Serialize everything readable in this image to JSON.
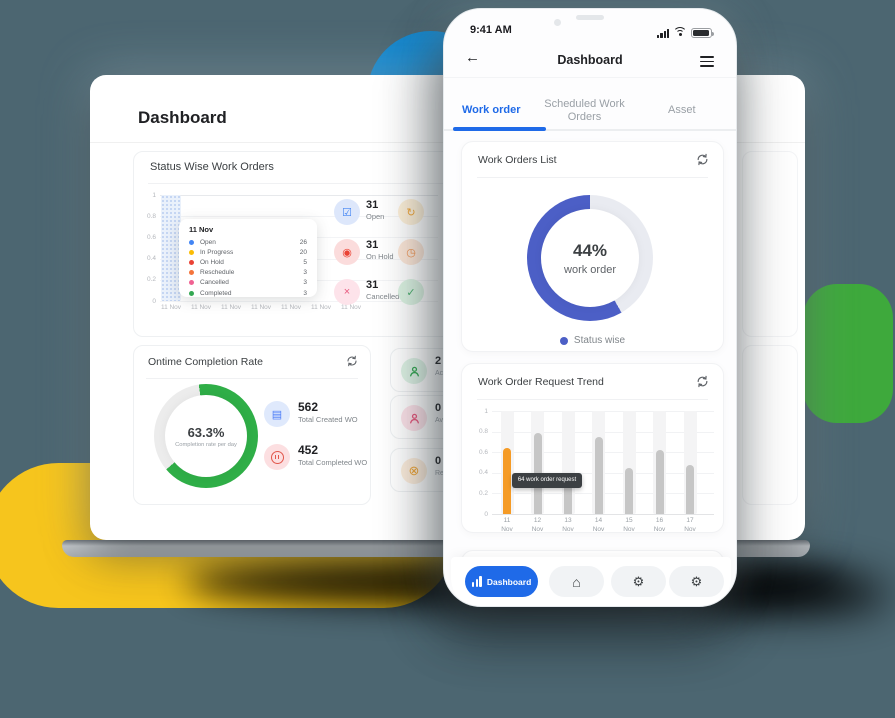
{
  "colors": {
    "accent_blue": "#1f6ae8",
    "donut_blue": "#4c5fc6",
    "donut_green": "#2fae47",
    "bar_orange": "#f59b26",
    "bar_gray": "#c6c6c6",
    "bg": "#4c6671"
  },
  "phone": {
    "status_bar": {
      "time": "9:41 AM"
    },
    "header": {
      "title": "Dashboard",
      "back_icon": "left-arrow",
      "menu_icon": "hamburger"
    },
    "tabs": [
      {
        "label": "Work order",
        "active": true
      },
      {
        "label": "Scheduled Work Orders",
        "active": false
      },
      {
        "label": "Asset",
        "active": false
      }
    ],
    "work_orders_card": {
      "title": "Work Orders List",
      "donut": {
        "value": "44%",
        "label": "work order",
        "percent": 44,
        "color": "#4c5fc6"
      },
      "legend": "Status wise"
    },
    "trend_card": {
      "title": "Work Order Request Trend",
      "tooltip": "64 work order request",
      "chart": {
        "type": "bar",
        "y_ticks": [
          "1",
          "0.8",
          "0.6",
          "0.4",
          "0.2",
          "0"
        ],
        "ylim": [
          0,
          1
        ],
        "bars": [
          {
            "day": "11",
            "month": "Nov",
            "value": 0.64,
            "color": "#f59b26"
          },
          {
            "day": "12",
            "month": "Nov",
            "value": 0.79,
            "color": "#c6c6c6"
          },
          {
            "day": "13",
            "month": "Nov",
            "value": 0.35,
            "color": "#c6c6c6"
          },
          {
            "day": "14",
            "month": "Nov",
            "value": 0.75,
            "color": "#c6c6c6"
          },
          {
            "day": "15",
            "month": "Nov",
            "value": 0.45,
            "color": "#c6c6c6"
          },
          {
            "day": "16",
            "month": "Nov",
            "value": 0.62,
            "color": "#c6c6c6"
          },
          {
            "day": "17",
            "month": "Nov",
            "value": 0.48,
            "color": "#c6c6c6"
          }
        ]
      }
    },
    "nav": {
      "dashboard_label": "Dashboard"
    }
  },
  "desktop": {
    "title": "Dashboard",
    "status_card": {
      "title": "Status Wise Work Orders",
      "y_ticks": [
        "1",
        "0.8",
        "0.6",
        "0.4",
        "0.2",
        "0"
      ],
      "x_labels": [
        "11 Nov",
        "11 Nov",
        "11 Nov",
        "11 Nov",
        "11 Nov",
        "11 Nov",
        "11 Nov"
      ],
      "tooltip": {
        "date": "11 Nov",
        "rows": [
          {
            "label": "Open",
            "value": "26",
            "color": "#4285f4"
          },
          {
            "label": "In Progress",
            "value": "20",
            "color": "#fbbc04"
          },
          {
            "label": "On Hold",
            "value": "5",
            "color": "#ea4335"
          },
          {
            "label": "Reschedule",
            "value": "3",
            "color": "#f4743b"
          },
          {
            "label": "Cancelled",
            "value": "3",
            "color": "#f06292"
          },
          {
            "label": "Completed",
            "value": "3",
            "color": "#34a853"
          }
        ]
      },
      "stats": [
        {
          "value": "31",
          "label": "Open"
        },
        {
          "value": "31",
          "label": "On Hold"
        },
        {
          "value": "31",
          "label": "Cancelled"
        }
      ]
    },
    "ontime_card": {
      "title": "Ontime Completion Rate",
      "donut": {
        "value": "63.3%",
        "label": "Completion rate per day",
        "percent": 63.3,
        "color": "#2fae47"
      },
      "stats": [
        {
          "value": "562",
          "label": "Total Created WO"
        },
        {
          "value": "452",
          "label": "Total Completed WO"
        }
      ]
    },
    "side_stats": [
      {
        "value": "2",
        "label": "Activ"
      },
      {
        "value": "0",
        "label": "Avail"
      },
      {
        "value": "0",
        "label": "Requ"
      }
    ]
  }
}
